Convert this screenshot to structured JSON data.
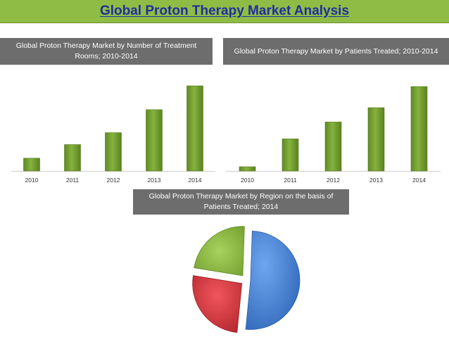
{
  "header": {
    "title": "Global Proton Therapy Market Analysis"
  },
  "colors": {
    "banner": "#8fbc45",
    "title_text": "#1f2f9e",
    "bar": "#6f9a2e",
    "panel_title_bg": "#6d6d6d",
    "pie_blue": "#3f7fd6",
    "pie_red": "#d9343c",
    "pie_green": "#8bb83f"
  },
  "chart_data": [
    {
      "type": "bar",
      "title": "Global Proton Therapy Market by Number of Treatment Rooms; 2010-2014",
      "categories": [
        "2010",
        "2011",
        "2012",
        "2013",
        "2014"
      ],
      "values": [
        15,
        31,
        45,
        72,
        100
      ],
      "ylim": [
        0,
        100
      ],
      "grid": false,
      "xlabel": "",
      "ylabel": ""
    },
    {
      "type": "bar",
      "title": "Global Proton Therapy Market by Patients Treated; 2010-2014",
      "categories": [
        "2010",
        "2011",
        "2012",
        "2013",
        "2014"
      ],
      "values": [
        5,
        38,
        58,
        75,
        100
      ],
      "ylim": [
        0,
        100
      ],
      "grid": false,
      "xlabel": "",
      "ylabel": ""
    },
    {
      "type": "pie",
      "title": "Global Proton Therapy Market by Region on the basis of Patients Treated; 2014",
      "values": [
        51,
        26,
        23
      ],
      "colors": [
        "#3f7fd6",
        "#d9343c",
        "#8bb83f"
      ],
      "exploded": true
    }
  ]
}
